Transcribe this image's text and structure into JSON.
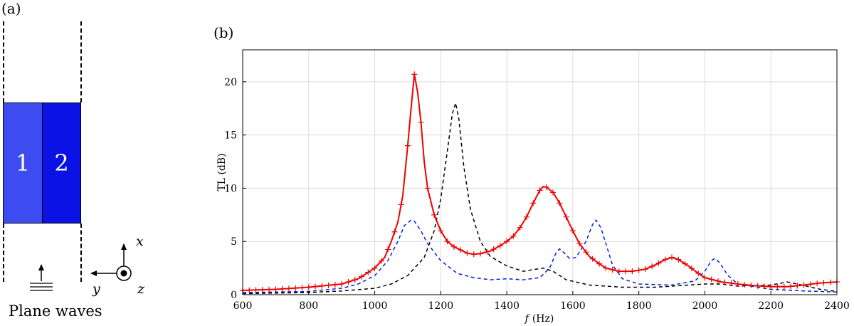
{
  "panel_a": {
    "label": "(a)",
    "layers": [
      "1",
      "2"
    ],
    "wave_caption": "Plane waves",
    "axes": {
      "x": "x",
      "y": "y",
      "z": "z"
    }
  },
  "panel_b": {
    "label": "(b)"
  },
  "chart_data": {
    "type": "line",
    "title": "",
    "xlabel_var": "f",
    "xlabel_unit": "(Hz)",
    "ylabel": "TL (dB)",
    "xlim": [
      600,
      2400
    ],
    "ylim": [
      0,
      23
    ],
    "x_ticks": [
      600,
      800,
      1000,
      1200,
      1400,
      1600,
      1800,
      2000,
      2200,
      2400
    ],
    "y_ticks": [
      0,
      5,
      10,
      15,
      20
    ],
    "grid": true,
    "series": [
      {
        "color": "#ee0000",
        "style": "solid-plus-markers",
        "points": [
          [
            600,
            0.4
          ],
          [
            700,
            0.5
          ],
          [
            800,
            0.7
          ],
          [
            900,
            1.0
          ],
          [
            950,
            1.5
          ],
          [
            1000,
            2.5
          ],
          [
            1030,
            3.5
          ],
          [
            1050,
            5.0
          ],
          [
            1070,
            6.8
          ],
          [
            1085,
            9.3
          ],
          [
            1100,
            14.0
          ],
          [
            1110,
            17.5
          ],
          [
            1120,
            20.7
          ],
          [
            1130,
            19.0
          ],
          [
            1140,
            16.2
          ],
          [
            1150,
            12.5
          ],
          [
            1160,
            10.0
          ],
          [
            1180,
            7.5
          ],
          [
            1200,
            6.0
          ],
          [
            1220,
            5.0
          ],
          [
            1240,
            4.5
          ],
          [
            1260,
            4.2
          ],
          [
            1280,
            3.9
          ],
          [
            1300,
            3.8
          ],
          [
            1320,
            3.85
          ],
          [
            1350,
            4.1
          ],
          [
            1380,
            4.6
          ],
          [
            1400,
            5.0
          ],
          [
            1420,
            5.5
          ],
          [
            1440,
            6.3
          ],
          [
            1460,
            7.3
          ],
          [
            1480,
            8.6
          ],
          [
            1500,
            9.8
          ],
          [
            1510,
            10.15
          ],
          [
            1520,
            10.1
          ],
          [
            1540,
            9.6
          ],
          [
            1560,
            8.6
          ],
          [
            1580,
            7.3
          ],
          [
            1600,
            6.0
          ],
          [
            1620,
            4.8
          ],
          [
            1650,
            3.6
          ],
          [
            1680,
            2.9
          ],
          [
            1700,
            2.5
          ],
          [
            1740,
            2.2
          ],
          [
            1780,
            2.2
          ],
          [
            1820,
            2.4
          ],
          [
            1850,
            2.8
          ],
          [
            1880,
            3.3
          ],
          [
            1900,
            3.5
          ],
          [
            1920,
            3.3
          ],
          [
            1950,
            2.7
          ],
          [
            1980,
            2.0
          ],
          [
            2000,
            1.6
          ],
          [
            2050,
            1.2
          ],
          [
            2100,
            1.0
          ],
          [
            2150,
            0.85
          ],
          [
            2200,
            0.75
          ],
          [
            2250,
            0.75
          ],
          [
            2300,
            0.9
          ],
          [
            2350,
            1.1
          ],
          [
            2400,
            1.2
          ]
        ]
      },
      {
        "color": "#0022dd",
        "style": "dashed",
        "points": [
          [
            600,
            0.2
          ],
          [
            800,
            0.3
          ],
          [
            900,
            0.6
          ],
          [
            950,
            1.0
          ],
          [
            1000,
            1.8
          ],
          [
            1040,
            3.2
          ],
          [
            1070,
            5.0
          ],
          [
            1090,
            6.5
          ],
          [
            1110,
            7.0
          ],
          [
            1120,
            6.9
          ],
          [
            1140,
            6.0
          ],
          [
            1160,
            4.8
          ],
          [
            1200,
            3.2
          ],
          [
            1250,
            2.0
          ],
          [
            1300,
            1.6
          ],
          [
            1350,
            1.4
          ],
          [
            1400,
            1.5
          ],
          [
            1450,
            1.4
          ],
          [
            1500,
            1.6
          ],
          [
            1530,
            2.5
          ],
          [
            1550,
            4.0
          ],
          [
            1560,
            4.3
          ],
          [
            1575,
            3.9
          ],
          [
            1590,
            3.4
          ],
          [
            1610,
            3.5
          ],
          [
            1640,
            5.0
          ],
          [
            1660,
            6.6
          ],
          [
            1670,
            7.0
          ],
          [
            1685,
            6.3
          ],
          [
            1700,
            4.8
          ],
          [
            1720,
            2.8
          ],
          [
            1750,
            1.5
          ],
          [
            1800,
            1.0
          ],
          [
            1900,
            0.9
          ],
          [
            1970,
            1.3
          ],
          [
            2000,
            2.2
          ],
          [
            2020,
            3.2
          ],
          [
            2030,
            3.4
          ],
          [
            2045,
            3.0
          ],
          [
            2070,
            1.8
          ],
          [
            2100,
            1.0
          ],
          [
            2200,
            0.5
          ],
          [
            2300,
            0.35
          ],
          [
            2400,
            0.25
          ]
        ]
      },
      {
        "color": "#000000",
        "style": "dashed",
        "points": [
          [
            600,
            0.1
          ],
          [
            800,
            0.2
          ],
          [
            900,
            0.35
          ],
          [
            1000,
            0.6
          ],
          [
            1050,
            1.0
          ],
          [
            1100,
            1.8
          ],
          [
            1150,
            3.5
          ],
          [
            1180,
            6.0
          ],
          [
            1200,
            9.0
          ],
          [
            1220,
            13.5
          ],
          [
            1235,
            17.0
          ],
          [
            1245,
            18.0
          ],
          [
            1255,
            16.5
          ],
          [
            1270,
            12.0
          ],
          [
            1290,
            8.0
          ],
          [
            1320,
            5.0
          ],
          [
            1350,
            3.6
          ],
          [
            1400,
            2.7
          ],
          [
            1450,
            2.2
          ],
          [
            1490,
            2.4
          ],
          [
            1510,
            2.5
          ],
          [
            1540,
            2.2
          ],
          [
            1580,
            1.4
          ],
          [
            1650,
            0.9
          ],
          [
            1750,
            0.7
          ],
          [
            1850,
            0.7
          ],
          [
            1950,
            0.9
          ],
          [
            2000,
            1.0
          ],
          [
            2050,
            1.0
          ],
          [
            2100,
            0.8
          ],
          [
            2200,
            0.9
          ],
          [
            2250,
            1.2
          ],
          [
            2280,
            1.0
          ],
          [
            2350,
            0.5
          ],
          [
            2400,
            0.3
          ]
        ]
      }
    ]
  }
}
